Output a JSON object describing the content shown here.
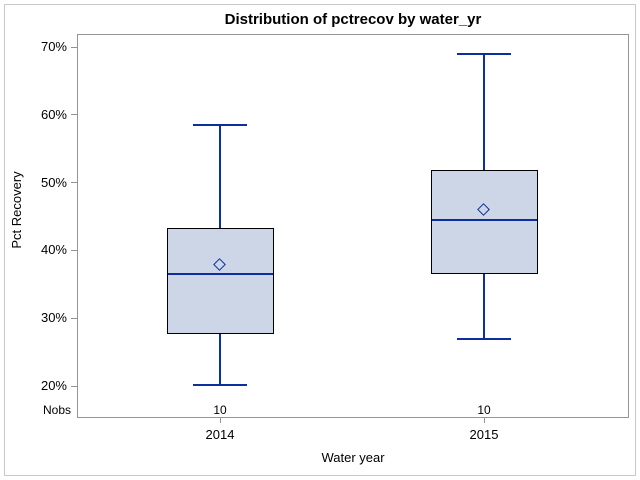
{
  "title": "Distribution of pctrecov by water_yr",
  "y_axis": {
    "label": "Pct Recovery"
  },
  "x_axis": {
    "label": "Water year"
  },
  "nobs": {
    "label": "Nobs",
    "values": [
      "10",
      "10"
    ]
  },
  "colors": {
    "box_fill": "#ccd6e6",
    "box_border": "#000000",
    "line": "#0c2f9d",
    "axis": "#949494",
    "outer_border": "#c9c9c9",
    "text": "#000000"
  },
  "chart_data": {
    "type": "boxplot",
    "title": "Distribution of pctrecov by water_yr",
    "xlabel": "Water year",
    "ylabel": "Pct Recovery",
    "ylim": [
      20,
      70
    ],
    "yticks": [
      20,
      30,
      40,
      50,
      60,
      70
    ],
    "ytick_format": "percent",
    "grid": false,
    "legend": false,
    "categories": [
      "2014",
      "2015"
    ],
    "series": [
      {
        "category": "2014",
        "nobs": "10",
        "whisker_low": 20.2,
        "q1": 27.8,
        "median": 36.5,
        "mean": 37.8,
        "q3": 43.2,
        "whisker_high": 58.5
      },
      {
        "category": "2015",
        "nobs": "10",
        "whisker_low": 27.0,
        "q1": 36.6,
        "median": 44.5,
        "mean": 46.0,
        "q3": 51.7,
        "whisker_high": 69.0
      }
    ]
  }
}
